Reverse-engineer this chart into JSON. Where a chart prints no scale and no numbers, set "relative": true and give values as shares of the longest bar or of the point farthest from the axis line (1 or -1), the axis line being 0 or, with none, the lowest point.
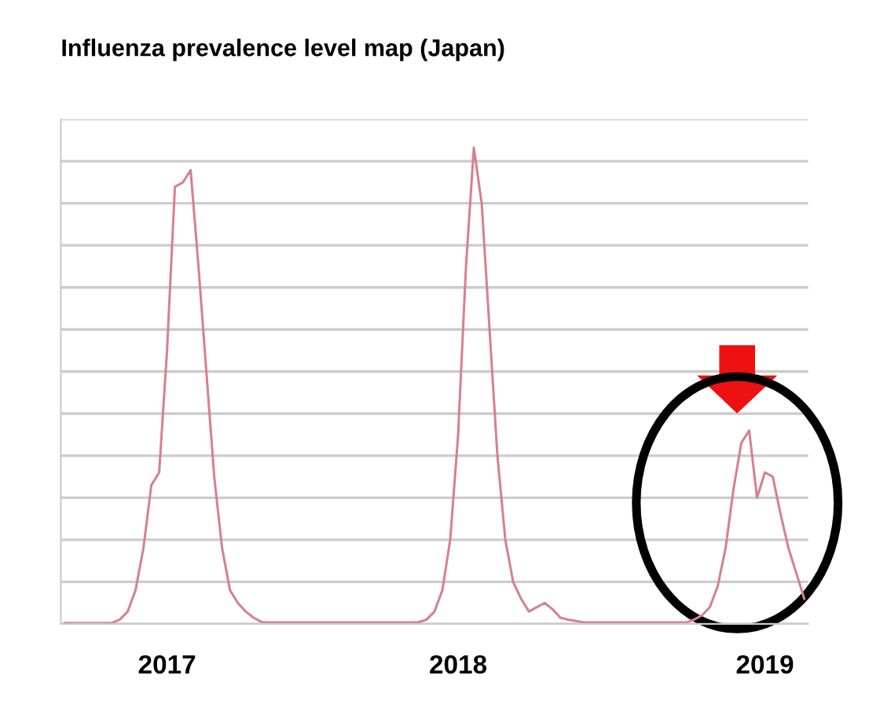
{
  "chart_data": {
    "type": "line",
    "title": "Influenza prevalence level map (Japan)",
    "relative": true,
    "grid": "y",
    "categories": [
      null,
      null,
      null,
      null,
      null,
      null,
      null,
      null,
      null,
      null,
      null,
      null,
      null,
      "2017",
      null,
      null,
      null,
      null,
      null,
      null,
      null,
      null,
      null,
      null,
      null,
      null,
      null,
      null,
      null,
      null,
      null,
      null,
      null,
      null,
      null,
      null,
      null,
      null,
      null,
      null,
      null,
      null,
      null,
      null,
      null,
      null,
      null,
      null,
      null,
      null,
      "2018",
      null,
      null,
      null,
      null,
      null,
      null,
      null,
      null,
      null,
      null,
      null,
      null,
      null,
      null,
      null,
      null,
      null,
      null,
      null,
      null,
      null,
      null,
      null,
      null,
      null,
      null,
      null,
      null,
      null,
      null,
      null,
      null,
      null,
      null,
      null,
      null,
      null,
      null,
      "2019",
      null,
      null,
      null,
      null,
      null
    ],
    "series": [
      {
        "color": "#d4828f",
        "values": [
          0.002,
          0.002,
          0.002,
          0.002,
          0.002,
          0.002,
          0.002,
          0.009,
          0.026,
          0.071,
          0.159,
          0.291,
          0.318,
          0.574,
          0.918,
          0.927,
          0.953,
          0.75,
          0.53,
          0.309,
          0.159,
          0.071,
          0.044,
          0.026,
          0.013,
          0.004,
          0.003,
          0.003,
          0.003,
          0.003,
          0.003,
          0.003,
          0.003,
          0.003,
          0.003,
          0.003,
          0.003,
          0.003,
          0.003,
          0.003,
          0.003,
          0.003,
          0.003,
          0.003,
          0.003,
          0.004,
          0.009,
          0.026,
          0.071,
          0.177,
          0.397,
          0.75,
          1,
          0.883,
          0.618,
          0.353,
          0.177,
          0.088,
          0.053,
          0.026,
          0.035,
          0.044,
          0.031,
          0.013,
          0.009,
          0.006,
          0.003,
          0.003,
          0.003,
          0.003,
          0.003,
          0.003,
          0.003,
          0.003,
          0.003,
          0.003,
          0.003,
          0.003,
          0.003,
          0.003,
          0.009,
          0.018,
          0.035,
          0.079,
          0.159,
          0.282,
          0.38,
          0.406,
          0.265,
          0.318,
          0.309,
          0.23,
          0.159,
          0.106,
          0.053
        ]
      }
    ],
    "marker": "none",
    "line_style": "solid"
  }
}
